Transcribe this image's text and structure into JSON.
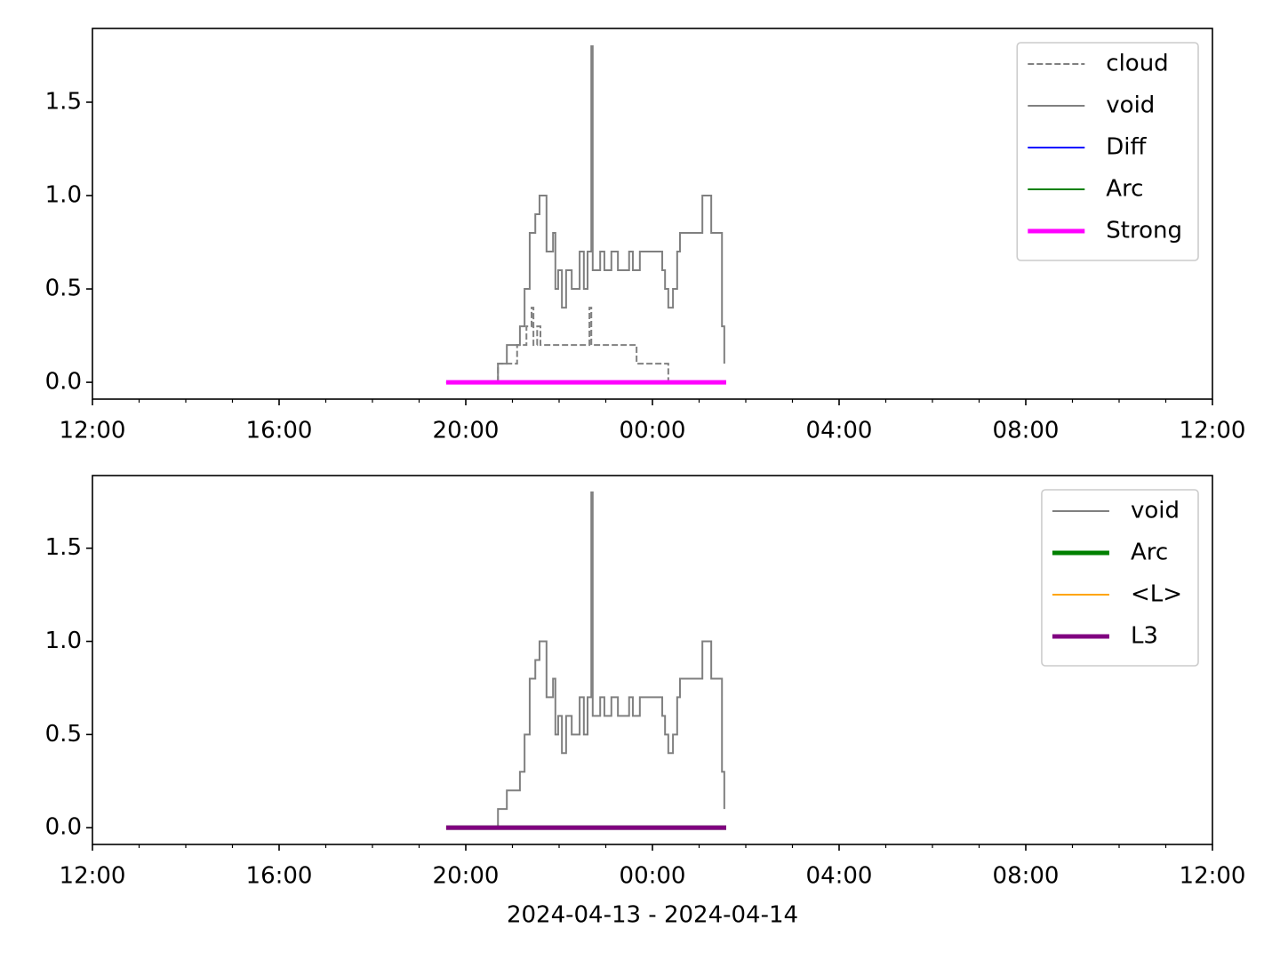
{
  "chart_data": [
    {
      "type": "line",
      "drawstyle": "steps-post",
      "legend": "upper right",
      "xlim": [
        0,
        24
      ],
      "xticks": [
        {
          "value": 0,
          "label": "12:00"
        },
        {
          "value": 4,
          "label": "16:00"
        },
        {
          "value": 8,
          "label": "20:00"
        },
        {
          "value": 12,
          "label": "00:00"
        },
        {
          "value": 16,
          "label": "04:00"
        },
        {
          "value": 20,
          "label": "08:00"
        },
        {
          "value": 24,
          "label": "12:00"
        }
      ],
      "xminorticks": [
        1,
        2,
        3,
        5,
        6,
        7,
        9,
        10,
        11,
        13,
        14,
        15,
        17,
        18,
        19,
        21,
        22,
        23
      ],
      "ylim": [
        -0.09,
        1.895
      ],
      "yticks": [
        {
          "value": 0,
          "label": "0.0"
        },
        0.5,
        {
          "value": 1,
          "label": "1.0"
        },
        1.5
      ],
      "series": [
        {
          "name": "cloud",
          "color": "#808080",
          "linestyle": "dashed",
          "linewidth": 1,
          "x": [
            8.69,
            8.69,
            9.1,
            9.1,
            9.3,
            9.41,
            9.45,
            9.53,
            9.6,
            10.63,
            10.65,
            10.69,
            11.62,
            11.66,
            12.34,
            12.34
          ],
          "values": [
            0,
            0.1,
            0.1,
            0.2,
            0.3,
            0.4,
            0.2,
            0.3,
            0.2,
            0.2,
            0.4,
            0.2,
            0.2,
            0.1,
            0.1,
            0
          ]
        },
        {
          "name": "void",
          "color": "#808080",
          "linestyle": "solid",
          "linewidth": 1,
          "x": [
            8.69,
            8.69,
            8.88,
            9.16,
            9.26,
            9.37,
            9.49,
            9.58,
            9.68,
            9.73,
            9.87,
            9.92,
            9.98,
            10.06,
            10.15,
            10.27,
            10.44,
            10.53,
            10.61,
            10.69,
            10.72,
            10.88,
            10.97,
            11.12,
            11.26,
            11.5,
            11.58,
            11.73,
            12.11,
            12.21,
            12.27,
            12.34,
            12.44,
            12.53,
            12.59,
            12.97,
            13.07,
            13.2,
            13.26,
            13.35,
            13.49,
            13.54
          ],
          "values": [
            0,
            0.1,
            0.2,
            0.3,
            0.5,
            0.8,
            0.9,
            1.0,
            1.0,
            0.7,
            0.8,
            0.5,
            0.6,
            0.4,
            0.6,
            0.5,
            0.7,
            0.5,
            0.7,
            1.8,
            0.6,
            0.7,
            0.6,
            0.7,
            0.6,
            0.7,
            0.6,
            0.7,
            0.7,
            0.6,
            0.5,
            0.4,
            0.5,
            0.7,
            0.8,
            0.8,
            1.0,
            1.0,
            0.8,
            0.8,
            0.3,
            0.1
          ]
        },
        {
          "name": "Diff",
          "color": "#0000ff",
          "linestyle": "solid",
          "linewidth": 1,
          "x": [
            7.58,
            13.58
          ],
          "values": [
            0,
            0
          ]
        },
        {
          "name": "Arc",
          "color": "#008000",
          "linestyle": "solid",
          "linewidth": 1,
          "x": [
            7.58,
            13.58
          ],
          "values": [
            0,
            0
          ]
        },
        {
          "name": "Strong",
          "color": "#ff00ff",
          "linestyle": "solid",
          "linewidth": 2.5,
          "x": [
            7.58,
            13.58
          ],
          "values": [
            0,
            0
          ]
        }
      ]
    },
    {
      "type": "line",
      "drawstyle": "steps-post",
      "legend": "upper right",
      "xlabel": "2024-04-13 - 2024-04-14",
      "xlim": [
        0,
        24
      ],
      "xticks": [
        {
          "value": 0,
          "label": "12:00"
        },
        {
          "value": 4,
          "label": "16:00"
        },
        {
          "value": 8,
          "label": "20:00"
        },
        {
          "value": 12,
          "label": "00:00"
        },
        {
          "value": 16,
          "label": "04:00"
        },
        {
          "value": 20,
          "label": "08:00"
        },
        {
          "value": 24,
          "label": "12:00"
        }
      ],
      "xminorticks": [
        1,
        2,
        3,
        5,
        6,
        7,
        9,
        10,
        11,
        13,
        14,
        15,
        17,
        18,
        19,
        21,
        22,
        23
      ],
      "ylim": [
        -0.09,
        1.89
      ],
      "yticks": [
        {
          "value": 0,
          "label": "0.0"
        },
        0.5,
        {
          "value": 1,
          "label": "1.0"
        },
        1.5
      ],
      "series": [
        {
          "name": "void",
          "color": "#808080",
          "linestyle": "solid",
          "linewidth": 1,
          "x": [
            8.69,
            8.69,
            8.88,
            9.16,
            9.26,
            9.37,
            9.49,
            9.58,
            9.68,
            9.73,
            9.87,
            9.92,
            9.98,
            10.06,
            10.15,
            10.27,
            10.44,
            10.53,
            10.61,
            10.69,
            10.72,
            10.88,
            10.97,
            11.12,
            11.26,
            11.5,
            11.58,
            11.73,
            12.11,
            12.21,
            12.27,
            12.34,
            12.44,
            12.53,
            12.59,
            12.97,
            13.07,
            13.2,
            13.26,
            13.35,
            13.49,
            13.54
          ],
          "values": [
            0,
            0.1,
            0.2,
            0.3,
            0.5,
            0.8,
            0.9,
            1.0,
            1.0,
            0.7,
            0.8,
            0.5,
            0.6,
            0.4,
            0.6,
            0.5,
            0.7,
            0.5,
            0.7,
            1.8,
            0.6,
            0.7,
            0.6,
            0.7,
            0.6,
            0.7,
            0.6,
            0.7,
            0.7,
            0.6,
            0.5,
            0.4,
            0.5,
            0.7,
            0.8,
            0.8,
            1.0,
            1.0,
            0.8,
            0.8,
            0.3,
            0.1
          ]
        },
        {
          "name": "Arc",
          "color": "#008000",
          "linestyle": "solid",
          "linewidth": 2.5,
          "x": [
            7.58,
            13.58
          ],
          "values": [
            0,
            0
          ]
        },
        {
          "name": "<L>",
          "color": "#ffa500",
          "linestyle": "solid",
          "linewidth": 1,
          "x": [
            7.58,
            13.58
          ],
          "values": [
            0,
            0
          ]
        },
        {
          "name": "L3",
          "color": "#800080",
          "linestyle": "solid",
          "linewidth": 2.5,
          "x": [
            7.58,
            13.58
          ],
          "values": [
            0,
            0
          ]
        }
      ]
    }
  ]
}
